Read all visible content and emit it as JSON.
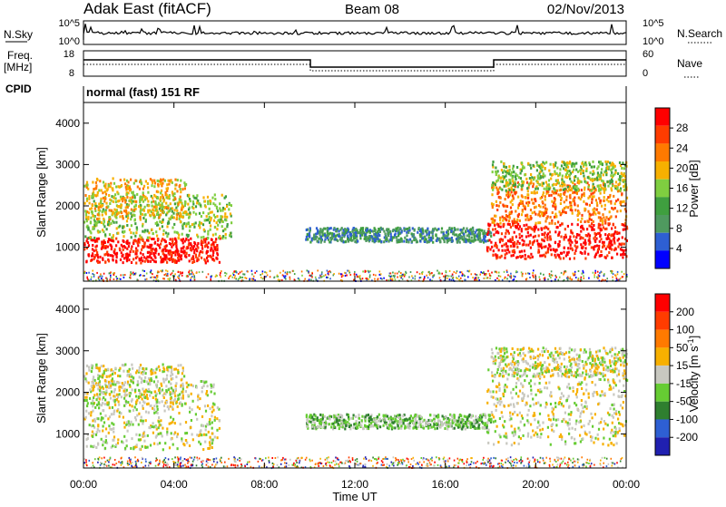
{
  "header": {
    "station": "Adak East (fitACF)",
    "beam": "Beam 08",
    "date": "02/Nov/2013"
  },
  "noise_panel": {
    "left_label": "N.Sky",
    "right_label": "N.Search",
    "ticks": [
      "10^5",
      "10^0"
    ]
  },
  "freq_panel": {
    "left_label": "Freq.",
    "left_unit": "[MHz]",
    "left_ticks": [
      "18",
      "8"
    ],
    "right_label": "Nave",
    "right_ticks": [
      "60",
      "0"
    ]
  },
  "cpid": {
    "label": "CPID",
    "text": "normal (fast) 151 RF"
  },
  "colors": {
    "power": [
      "#0000ff",
      "#2e5fd3",
      "#4f9a5f",
      "#3f9f3f",
      "#7fce40",
      "#f7b000",
      "#ff7a00",
      "#ff3c00",
      "#ff0000"
    ],
    "velocity": [
      "#2020b0",
      "#2e5fd3",
      "#2f7f2f",
      "#66cc33",
      "#c8c8c0",
      "#f7b000",
      "#ff7a00",
      "#ff3c00",
      "#ff0000"
    ]
  },
  "chart_data": [
    {
      "type": "heatmap",
      "name": "power",
      "ylabel": "Slant Range [km]",
      "xlabel": "",
      "xlim": [
        "00:00",
        "24:00"
      ],
      "ylim": [
        180,
        4500
      ],
      "y_ticks": [
        "1000",
        "2000",
        "3000",
        "4000"
      ],
      "colorbar_label": "Power [dB]",
      "colorbar_ticks": [
        "4",
        "8",
        "12",
        "16",
        "20",
        "24",
        "28"
      ],
      "regions": [
        {
          "t0": 0.0,
          "t1": 6.0,
          "r0": 650,
          "r1": 1250,
          "level": 8
        },
        {
          "t0": 0.0,
          "t1": 6.5,
          "r0": 1250,
          "r1": 2300,
          "level": 4
        },
        {
          "t0": 0.0,
          "t1": 4.5,
          "r0": 1700,
          "r1": 2700,
          "level": 5
        },
        {
          "t0": 9.8,
          "t1": 18.0,
          "r0": 1150,
          "r1": 1500,
          "level": 2
        },
        {
          "t0": 17.8,
          "t1": 24.0,
          "r0": 750,
          "r1": 1600,
          "level": 8
        },
        {
          "t0": 18.0,
          "t1": 24.0,
          "r0": 1600,
          "r1": 2600,
          "level": 6
        },
        {
          "t0": 18.0,
          "t1": 24.0,
          "r0": 2400,
          "r1": 3100,
          "level": 4
        }
      ]
    },
    {
      "type": "heatmap",
      "name": "velocity",
      "ylabel": "Slant Range [km]",
      "xlabel": "Time UT",
      "x_ticks": [
        "00:00",
        "04:00",
        "08:00",
        "12:00",
        "16:00",
        "20:00",
        "00:00"
      ],
      "xlim": [
        "00:00",
        "24:00"
      ],
      "ylim": [
        180,
        4500
      ],
      "y_ticks": [
        "1000",
        "2000",
        "3000",
        "4000"
      ],
      "colorbar_label": "Velocity [m s",
      "colorbar_exponent": "-1",
      "colorbar_ticks": [
        "200",
        "100",
        "50",
        "15",
        "-15",
        "-50",
        "-100",
        "-200"
      ],
      "regions": [
        {
          "t0": 0.0,
          "t1": 6.0,
          "r0": 650,
          "r1": 2300,
          "level": 4
        },
        {
          "t0": 0.0,
          "t1": 4.5,
          "r0": 1700,
          "r1": 2700,
          "level": 4
        },
        {
          "t0": 9.8,
          "t1": 18.0,
          "r0": 1150,
          "r1": 1500,
          "level": 3
        },
        {
          "t0": 17.8,
          "t1": 24.0,
          "r0": 750,
          "r1": 2600,
          "level": 4
        },
        {
          "t0": 18.0,
          "t1": 24.0,
          "r0": 2400,
          "r1": 3100,
          "level": 4
        }
      ]
    }
  ]
}
